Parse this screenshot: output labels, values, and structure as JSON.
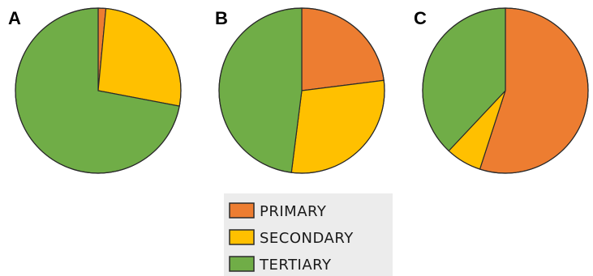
{
  "chart_data": [
    {
      "type": "pie",
      "panel_label": "A",
      "categories": [
        "PRIMARY",
        "SECONDARY",
        "TERTIARY"
      ],
      "values": [
        1.5,
        26.5,
        72.0
      ],
      "start_angle_deg": 0,
      "direction": "clockwise"
    },
    {
      "type": "pie",
      "panel_label": "B",
      "categories": [
        "PRIMARY",
        "SECONDARY",
        "TERTIARY"
      ],
      "values": [
        23.0,
        29.0,
        48.0
      ],
      "start_angle_deg": 0,
      "direction": "clockwise"
    },
    {
      "type": "pie",
      "panel_label": "C",
      "categories": [
        "PRIMARY",
        "SECONDARY",
        "TERTIARY"
      ],
      "values": [
        55.0,
        7.0,
        38.0
      ],
      "start_angle_deg": 0,
      "direction": "clockwise"
    }
  ],
  "legend": {
    "items": [
      {
        "label": "PRIMARY",
        "color": "#ED7D31"
      },
      {
        "label": "SECONDARY",
        "color": "#FFC000"
      },
      {
        "label": "TERTIARY",
        "color": "#70AD47"
      }
    ]
  },
  "colors": {
    "PRIMARY": "#ED7D31",
    "SECONDARY": "#FFC000",
    "TERTIARY": "#70AD47",
    "outline": "#2b2b2b"
  }
}
